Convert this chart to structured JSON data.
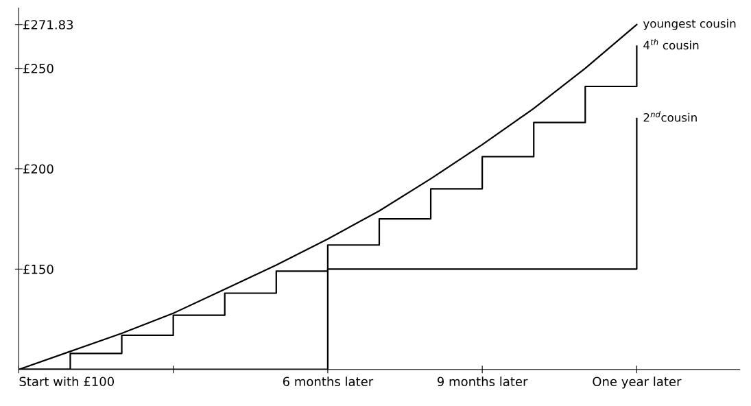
{
  "chart_data": {
    "type": "line",
    "xlim": [
      0,
      14
    ],
    "ylim": [
      100,
      280
    ],
    "xticks": [
      {
        "value": 0,
        "label": "Start with £100"
      },
      {
        "value": 3,
        "label": null
      },
      {
        "value": 6,
        "label": "6 months later"
      },
      {
        "value": 9,
        "label": "9 months later"
      },
      {
        "value": 12,
        "label": "One year later"
      }
    ],
    "yticks": [
      {
        "value": 150,
        "label": "£150"
      },
      {
        "value": 200,
        "label": "£200"
      },
      {
        "value": 250,
        "label": "£250"
      },
      {
        "value": 271.83,
        "label": "£271.83"
      }
    ],
    "grid": false,
    "legend": false,
    "marker": "none",
    "line_style": "solid",
    "series": [
      {
        "name": "youngest cousin",
        "color": "#000000",
        "x": [
          0,
          1,
          2,
          3,
          4,
          5,
          6,
          7,
          8,
          9,
          10,
          11,
          12
        ],
        "values": [
          100,
          109,
          118,
          128,
          140,
          152,
          165,
          179,
          195,
          212,
          230,
          250,
          271.83
        ]
      },
      {
        "name": "4$^{th}$ cousin",
        "type": "step",
        "color": "#000000",
        "x": [
          0,
          1,
          2,
          3,
          4,
          5,
          6,
          7,
          8,
          9,
          10,
          11,
          12
        ],
        "values": [
          100,
          108,
          117,
          127,
          138,
          149,
          162,
          175,
          190,
          206,
          223,
          241,
          261
        ]
      },
      {
        "name": "2$^{nd}$cousin",
        "type": "step",
        "color": "#000000",
        "x": [
          0,
          6,
          12
        ],
        "values": [
          100,
          150,
          225
        ]
      }
    ]
  }
}
